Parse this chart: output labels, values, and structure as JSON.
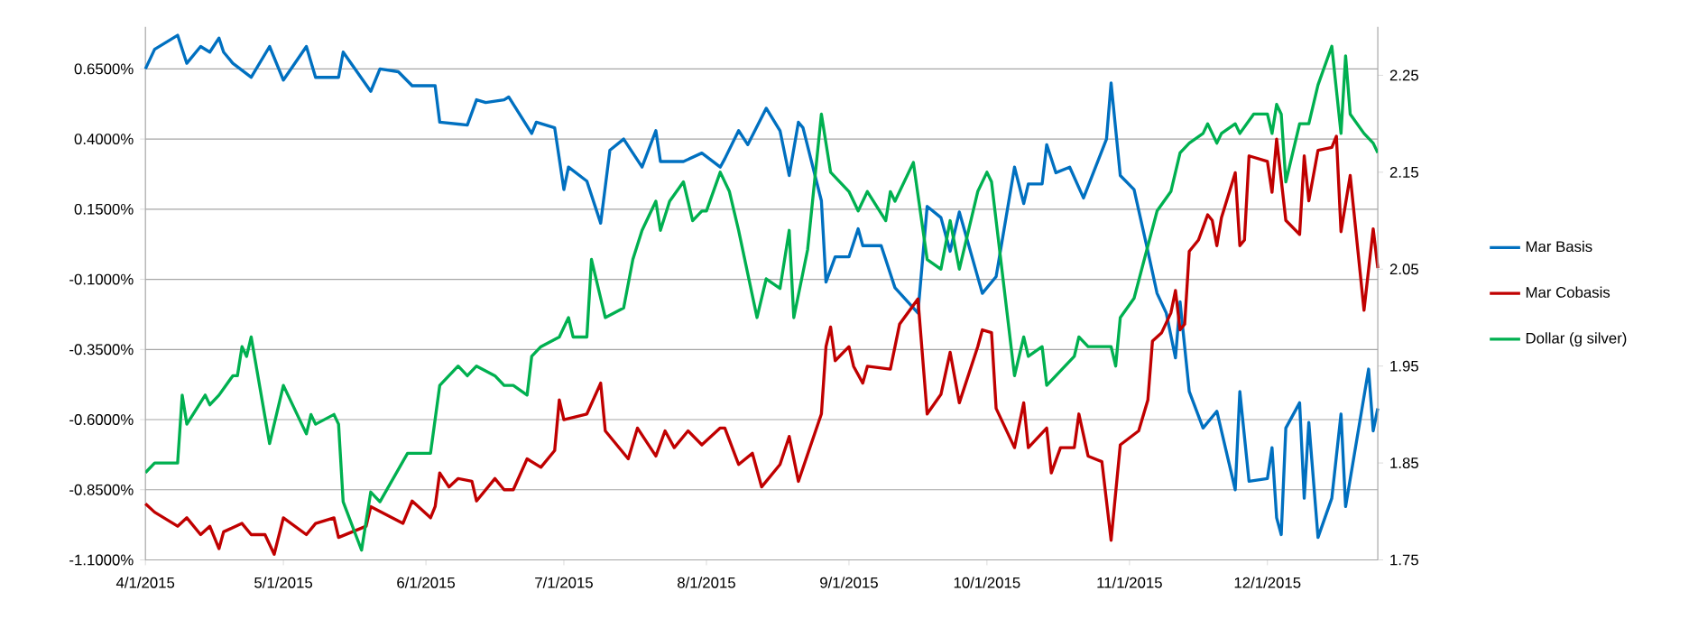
{
  "chart_data": {
    "type": "line",
    "xlim": [
      "2015-04-01",
      "2015-12-25"
    ],
    "xticks": [
      {
        "value": "2015-04-01",
        "label": "4/1/2015"
      },
      {
        "value": "2015-05-01",
        "label": "5/1/2015"
      },
      {
        "value": "2015-06-01",
        "label": "6/1/2015"
      },
      {
        "value": "2015-07-01",
        "label": "7/1/2015"
      },
      {
        "value": "2015-08-01",
        "label": "8/1/2015"
      },
      {
        "value": "2015-09-01",
        "label": "9/1/2015"
      },
      {
        "value": "2015-10-01",
        "label": "10/1/2015"
      },
      {
        "value": "2015-11-01",
        "label": "11/1/2015"
      },
      {
        "value": "2015-12-01",
        "label": "12/1/2015"
      }
    ],
    "ylim": [
      -1.1,
      0.8
    ],
    "yticks": [
      {
        "value": -1.1,
        "label": "-1.1000%"
      },
      {
        "value": -0.85,
        "label": "-0.8500%"
      },
      {
        "value": -0.6,
        "label": "-0.6000%"
      },
      {
        "value": -0.35,
        "label": "-0.3500%"
      },
      {
        "value": -0.1,
        "label": "-0.1000%"
      },
      {
        "value": 0.15,
        "label": "0.1500%"
      },
      {
        "value": 0.4,
        "label": "0.4000%"
      },
      {
        "value": 0.65,
        "label": "0.6500%"
      }
    ],
    "y2lim": [
      1.75,
      2.3
    ],
    "y2ticks": [
      1.75,
      1.85,
      1.95,
      2.05,
      2.15,
      2.25
    ],
    "grid": "y",
    "legend": "right",
    "series": [
      {
        "name": "Mar Basis",
        "color": "#0070c0",
        "axis": "y",
        "x": [
          "2015-04-01",
          "2015-04-03",
          "2015-04-08",
          "2015-04-10",
          "2015-04-13",
          "2015-04-15",
          "2015-04-17",
          "2015-04-18",
          "2015-04-20",
          "2015-04-24",
          "2015-04-28",
          "2015-05-01",
          "2015-05-06",
          "2015-05-08",
          "2015-05-13",
          "2015-05-14",
          "2015-05-20",
          "2015-05-22",
          "2015-05-26",
          "2015-05-29",
          "2015-06-03",
          "2015-06-04",
          "2015-06-10",
          "2015-06-12",
          "2015-06-14",
          "2015-06-18",
          "2015-06-19",
          "2015-06-24",
          "2015-06-25",
          "2015-06-29",
          "2015-07-01",
          "2015-07-02",
          "2015-07-06",
          "2015-07-09",
          "2015-07-11",
          "2015-07-14",
          "2015-07-16",
          "2015-07-18",
          "2015-07-21",
          "2015-07-22",
          "2015-07-27",
          "2015-07-31",
          "2015-08-04",
          "2015-08-05",
          "2015-08-08",
          "2015-08-10",
          "2015-08-14",
          "2015-08-17",
          "2015-08-19",
          "2015-08-21",
          "2015-08-22",
          "2015-08-26",
          "2015-08-27",
          "2015-08-29",
          "2015-09-01",
          "2015-09-03",
          "2015-09-04",
          "2015-09-08",
          "2015-09-11",
          "2015-09-16",
          "2015-09-18",
          "2015-09-21",
          "2015-09-23",
          "2015-09-25",
          "2015-09-30",
          "2015-10-03",
          "2015-10-07",
          "2015-10-09",
          "2015-10-10",
          "2015-10-13",
          "2015-10-14",
          "2015-10-16",
          "2015-10-19",
          "2015-10-22",
          "2015-10-27",
          "2015-10-28",
          "2015-10-30",
          "2015-11-02",
          "2015-11-05",
          "2015-11-07",
          "2015-11-09",
          "2015-11-11",
          "2015-11-12",
          "2015-11-14",
          "2015-11-17",
          "2015-11-20",
          "2015-11-24",
          "2015-11-25",
          "2015-11-27",
          "2015-12-01",
          "2015-12-02",
          "2015-12-03",
          "2015-12-04",
          "2015-12-05",
          "2015-12-08",
          "2015-12-09",
          "2015-12-10",
          "2015-12-12",
          "2015-12-15",
          "2015-12-17",
          "2015-12-18",
          "2015-12-23",
          "2015-12-24",
          "2015-12-25"
        ],
        "values": [
          0.65,
          0.72,
          0.77,
          0.67,
          0.73,
          0.71,
          0.76,
          0.71,
          0.67,
          0.62,
          0.73,
          0.61,
          0.73,
          0.62,
          0.62,
          0.71,
          0.57,
          0.65,
          0.64,
          0.59,
          0.59,
          0.46,
          0.45,
          0.54,
          0.53,
          0.54,
          0.55,
          0.42,
          0.46,
          0.44,
          0.22,
          0.3,
          0.25,
          0.1,
          0.36,
          0.4,
          0.35,
          0.3,
          0.43,
          0.32,
          0.32,
          0.35,
          0.3,
          0.33,
          0.43,
          0.38,
          0.51,
          0.43,
          0.27,
          0.46,
          0.44,
          0.18,
          -0.11,
          -0.02,
          -0.02,
          0.08,
          0.02,
          0.02,
          -0.13,
          -0.22,
          0.16,
          0.12,
          0.0,
          0.14,
          -0.15,
          -0.09,
          0.3,
          0.17,
          0.24,
          0.24,
          0.38,
          0.28,
          0.3,
          0.19,
          0.4,
          0.6,
          0.27,
          0.22,
          0.0,
          -0.15,
          -0.22,
          -0.38,
          -0.18,
          -0.5,
          -0.63,
          -0.57,
          -0.85,
          -0.5,
          -0.82,
          -0.81,
          -0.7,
          -0.95,
          -1.01,
          -0.63,
          -0.54,
          -0.88,
          -0.61,
          -1.02,
          -0.88,
          -0.58,
          -0.91,
          -0.42,
          -0.64,
          -0.56
        ]
      },
      {
        "name": "Mar Cobasis",
        "color": "#c00000",
        "axis": "y",
        "x": [
          "2015-04-01",
          "2015-04-03",
          "2015-04-08",
          "2015-04-10",
          "2015-04-13",
          "2015-04-15",
          "2015-04-17",
          "2015-04-18",
          "2015-04-22",
          "2015-04-24",
          "2015-04-27",
          "2015-04-29",
          "2015-05-01",
          "2015-05-06",
          "2015-05-08",
          "2015-05-12",
          "2015-05-13",
          "2015-05-19",
          "2015-05-20",
          "2015-05-27",
          "2015-05-29",
          "2015-06-02",
          "2015-06-03",
          "2015-06-04",
          "2015-06-06",
          "2015-06-08",
          "2015-06-11",
          "2015-06-12",
          "2015-06-16",
          "2015-06-18",
          "2015-06-20",
          "2015-06-23",
          "2015-06-26",
          "2015-06-29",
          "2015-06-30",
          "2015-07-01",
          "2015-07-06",
          "2015-07-09",
          "2015-07-10",
          "2015-07-15",
          "2015-07-17",
          "2015-07-21",
          "2015-07-23",
          "2015-07-25",
          "2015-07-28",
          "2015-07-31",
          "2015-08-04",
          "2015-08-05",
          "2015-08-08",
          "2015-08-11",
          "2015-08-13",
          "2015-08-17",
          "2015-08-19",
          "2015-08-21",
          "2015-08-26",
          "2015-08-27",
          "2015-08-28",
          "2015-08-29",
          "2015-09-01",
          "2015-09-02",
          "2015-09-04",
          "2015-09-05",
          "2015-09-10",
          "2015-09-12",
          "2015-09-16",
          "2015-09-18",
          "2015-09-21",
          "2015-09-23",
          "2015-09-25",
          "2015-09-29",
          "2015-09-30",
          "2015-10-02",
          "2015-10-03",
          "2015-10-07",
          "2015-10-09",
          "2015-10-10",
          "2015-10-14",
          "2015-10-15",
          "2015-10-17",
          "2015-10-20",
          "2015-10-21",
          "2015-10-23",
          "2015-10-26",
          "2015-10-28",
          "2015-10-30",
          "2015-11-03",
          "2015-11-05",
          "2015-11-06",
          "2015-11-08",
          "2015-11-10",
          "2015-11-11",
          "2015-11-12",
          "2015-11-13",
          "2015-11-14",
          "2015-11-16",
          "2015-11-18",
          "2015-11-19",
          "2015-11-20",
          "2015-11-21",
          "2015-11-24",
          "2015-11-25",
          "2015-11-26",
          "2015-11-27",
          "2015-12-01",
          "2015-12-02",
          "2015-12-03",
          "2015-12-05",
          "2015-12-08",
          "2015-12-09",
          "2015-12-10",
          "2015-12-12",
          "2015-12-15",
          "2015-12-16",
          "2015-12-17",
          "2015-12-19",
          "2015-12-22",
          "2015-12-24",
          "2015-12-25"
        ],
        "values": [
          -0.9,
          -0.93,
          -0.98,
          -0.95,
          -1.01,
          -0.98,
          -1.06,
          -1.0,
          -0.97,
          -1.01,
          -1.01,
          -1.08,
          -0.95,
          -1.01,
          -0.97,
          -0.95,
          -1.02,
          -0.98,
          -0.91,
          -0.97,
          -0.89,
          -0.95,
          -0.91,
          -0.79,
          -0.84,
          -0.81,
          -0.82,
          -0.89,
          -0.81,
          -0.85,
          -0.85,
          -0.74,
          -0.77,
          -0.71,
          -0.53,
          -0.6,
          -0.58,
          -0.47,
          -0.64,
          -0.74,
          -0.63,
          -0.73,
          -0.64,
          -0.7,
          -0.64,
          -0.69,
          -0.63,
          -0.63,
          -0.76,
          -0.72,
          -0.84,
          -0.76,
          -0.66,
          -0.82,
          -0.58,
          -0.34,
          -0.27,
          -0.39,
          -0.34,
          -0.41,
          -0.47,
          -0.41,
          -0.42,
          -0.26,
          -0.17,
          -0.58,
          -0.51,
          -0.36,
          -0.54,
          -0.34,
          -0.28,
          -0.29,
          -0.56,
          -0.7,
          -0.54,
          -0.7,
          -0.63,
          -0.79,
          -0.7,
          -0.7,
          -0.58,
          -0.73,
          -0.75,
          -1.03,
          -0.69,
          -0.64,
          -0.53,
          -0.32,
          -0.29,
          -0.22,
          -0.14,
          -0.28,
          -0.26,
          0.0,
          0.04,
          0.13,
          0.11,
          0.02,
          0.12,
          0.28,
          0.02,
          0.04,
          0.34,
          0.32,
          0.21,
          0.4,
          0.11,
          0.06,
          0.34,
          0.18,
          0.36,
          0.37,
          0.41,
          0.07,
          0.27,
          -0.21,
          0.08,
          -0.06
        ]
      },
      {
        "name": "Dollar (g silver)",
        "color": "#00b050",
        "axis": "y2",
        "x": [
          "2015-04-01",
          "2015-04-03",
          "2015-04-08",
          "2015-04-09",
          "2015-04-10",
          "2015-04-14",
          "2015-04-15",
          "2015-04-17",
          "2015-04-20",
          "2015-04-21",
          "2015-04-22",
          "2015-04-23",
          "2015-04-24",
          "2015-04-28",
          "2015-05-01",
          "2015-05-06",
          "2015-05-07",
          "2015-05-08",
          "2015-05-12",
          "2015-05-13",
          "2015-05-14",
          "2015-05-18",
          "2015-05-20",
          "2015-05-22",
          "2015-05-28",
          "2015-06-02",
          "2015-06-04",
          "2015-06-08",
          "2015-06-10",
          "2015-06-12",
          "2015-06-16",
          "2015-06-18",
          "2015-06-20",
          "2015-06-23",
          "2015-06-24",
          "2015-06-26",
          "2015-06-30",
          "2015-07-02",
          "2015-07-03",
          "2015-07-06",
          "2015-07-07",
          "2015-07-10",
          "2015-07-14",
          "2015-07-16",
          "2015-07-18",
          "2015-07-21",
          "2015-07-22",
          "2015-07-24",
          "2015-07-27",
          "2015-07-29",
          "2015-07-31",
          "2015-08-01",
          "2015-08-04",
          "2015-08-05",
          "2015-08-06",
          "2015-08-08",
          "2015-08-12",
          "2015-08-14",
          "2015-08-17",
          "2015-08-19",
          "2015-08-20",
          "2015-08-23",
          "2015-08-26",
          "2015-08-28",
          "2015-09-01",
          "2015-09-03",
          "2015-09-05",
          "2015-09-09",
          "2015-09-10",
          "2015-09-11",
          "2015-09-15",
          "2015-09-18",
          "2015-09-21",
          "2015-09-23",
          "2015-09-25",
          "2015-09-29",
          "2015-10-01",
          "2015-10-02",
          "2015-10-07",
          "2015-10-09",
          "2015-10-10",
          "2015-10-13",
          "2015-10-14",
          "2015-10-16",
          "2015-10-20",
          "2015-10-21",
          "2015-10-23",
          "2015-10-28",
          "2015-10-29",
          "2015-10-30",
          "2015-11-02",
          "2015-11-07",
          "2015-11-10",
          "2015-11-12",
          "2015-11-14",
          "2015-11-17",
          "2015-11-18",
          "2015-11-20",
          "2015-11-21",
          "2015-11-24",
          "2015-11-25",
          "2015-11-28",
          "2015-12-01",
          "2015-12-02",
          "2015-12-03",
          "2015-12-04",
          "2015-12-05",
          "2015-12-08",
          "2015-12-10",
          "2015-12-12",
          "2015-12-15",
          "2015-12-17",
          "2015-12-18",
          "2015-12-19",
          "2015-12-22",
          "2015-12-24",
          "2015-12-25"
        ],
        "values": [
          1.84,
          1.85,
          1.85,
          1.92,
          1.89,
          1.92,
          1.91,
          1.92,
          1.94,
          1.94,
          1.97,
          1.96,
          1.98,
          1.87,
          1.93,
          1.88,
          1.9,
          1.89,
          1.9,
          1.89,
          1.81,
          1.76,
          1.82,
          1.81,
          1.86,
          1.86,
          1.93,
          1.95,
          1.94,
          1.95,
          1.94,
          1.93,
          1.93,
          1.92,
          1.96,
          1.97,
          1.98,
          2.0,
          1.98,
          1.98,
          2.06,
          2.0,
          2.01,
          2.06,
          2.09,
          2.12,
          2.09,
          2.12,
          2.14,
          2.1,
          2.11,
          2.11,
          2.15,
          2.14,
          2.13,
          2.09,
          2.0,
          2.04,
          2.03,
          2.09,
          2.0,
          2.07,
          2.21,
          2.15,
          2.13,
          2.11,
          2.13,
          2.1,
          2.13,
          2.12,
          2.16,
          2.06,
          2.05,
          2.1,
          2.05,
          2.13,
          2.15,
          2.14,
          1.94,
          1.98,
          1.96,
          1.97,
          1.93,
          1.94,
          1.96,
          1.98,
          1.97,
          1.97,
          1.95,
          2.0,
          2.02,
          2.11,
          2.13,
          2.17,
          2.18,
          2.19,
          2.2,
          2.18,
          2.19,
          2.2,
          2.19,
          2.21,
          2.21,
          2.19,
          2.22,
          2.21,
          2.14,
          2.2,
          2.2,
          2.24,
          2.28,
          2.19,
          2.27,
          2.21,
          2.19,
          2.18,
          2.17
        ]
      }
    ]
  }
}
